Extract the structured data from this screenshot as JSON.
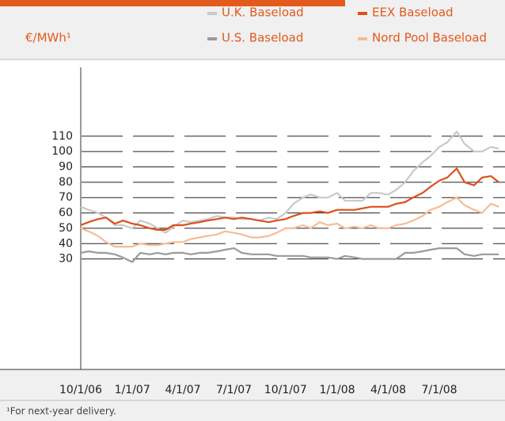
{
  "chart_data": {
    "type": "line",
    "ylabel": "€/MWh¹",
    "footnote": "¹For next-year delivery.",
    "x": [
      "10/1/06",
      "10/15/06",
      "11/1/06",
      "11/15/06",
      "12/1/06",
      "12/15/06",
      "1/1/07",
      "1/15/07",
      "2/1/07",
      "2/15/07",
      "3/1/07",
      "3/15/07",
      "4/1/07",
      "4/15/07",
      "5/1/07",
      "5/15/07",
      "6/1/07",
      "6/15/07",
      "7/1/07",
      "7/15/07",
      "8/1/07",
      "8/15/07",
      "9/1/07",
      "9/15/07",
      "10/1/07",
      "10/15/07",
      "11/1/07",
      "11/15/07",
      "12/1/07",
      "12/15/07",
      "1/1/08",
      "1/15/08",
      "2/1/08",
      "2/15/08",
      "3/1/08",
      "3/15/08",
      "4/1/08",
      "4/15/08",
      "5/1/08",
      "5/15/08",
      "6/1/08",
      "6/15/08",
      "7/1/08",
      "7/15/08",
      "8/1/08",
      "8/15/08",
      "9/1/08",
      "9/15/08",
      "10/1/08",
      "10/15/08"
    ],
    "series": [
      {
        "name": "U.K. Baseload",
        "color": "#c9c9c9",
        "values": [
          64,
          62,
          60,
          57,
          52,
          52,
          50,
          55,
          53,
          50,
          47,
          51,
          55,
          54,
          55,
          56,
          58,
          57,
          57,
          56,
          56,
          55,
          57,
          56,
          60,
          66,
          70,
          72,
          70,
          70,
          73,
          68,
          68,
          68,
          73,
          73,
          72,
          75,
          80,
          87,
          93,
          97,
          103,
          106,
          113,
          105,
          100,
          100,
          103,
          102
        ]
      },
      {
        "name": "EEX Baseload",
        "color": "#de4f1b",
        "values": [
          52,
          54,
          56,
          57,
          53,
          55,
          53,
          52,
          50,
          49,
          49,
          52,
          52,
          53,
          54,
          55,
          56,
          57,
          56,
          57,
          56,
          55,
          54,
          55,
          56,
          58,
          60,
          60,
          61,
          60,
          62,
          62,
          62,
          63,
          64,
          64,
          64,
          66,
          67,
          70,
          73,
          77,
          81,
          83,
          89,
          80,
          78,
          83,
          84,
          80
        ]
      },
      {
        "name": "U.S. Baseload",
        "color": "#9a9a9a",
        "values": [
          34,
          35,
          34,
          34,
          33,
          31,
          28,
          34,
          33,
          34,
          33,
          34,
          34,
          33,
          34,
          34,
          35,
          36,
          37,
          34,
          33,
          33,
          33,
          32,
          32,
          32,
          32,
          31,
          31,
          31,
          30,
          32,
          31,
          30,
          30,
          30,
          30,
          30,
          34,
          34,
          35,
          36,
          37,
          37,
          37,
          33,
          32,
          33,
          33,
          33
        ]
      },
      {
        "name": "Nord Pool Baseload",
        "color": "#f8bb92",
        "values": [
          50,
          48,
          45,
          41,
          38,
          38,
          38,
          40,
          39,
          39,
          40,
          41,
          41,
          43,
          44,
          45,
          46,
          48,
          47,
          46,
          44,
          44,
          45,
          47,
          50,
          50,
          52,
          50,
          54,
          52,
          53,
          50,
          51,
          50,
          52,
          50,
          50,
          52,
          53,
          55,
          58,
          62,
          64,
          67,
          70,
          65,
          62,
          60,
          66,
          64
        ]
      }
    ],
    "xlim": [
      "10/1/06",
      "10/26/08"
    ],
    "xticks": [
      "10/1/06",
      "1/1/07",
      "4/1/07",
      "7/1/07",
      "10/1/07",
      "1/1/08",
      "4/1/08",
      "7/1/08"
    ],
    "ylim": [
      -42,
      160
    ],
    "yticks": [
      30,
      40,
      50,
      60,
      70,
      80,
      90,
      100,
      110
    ],
    "grid": true
  }
}
